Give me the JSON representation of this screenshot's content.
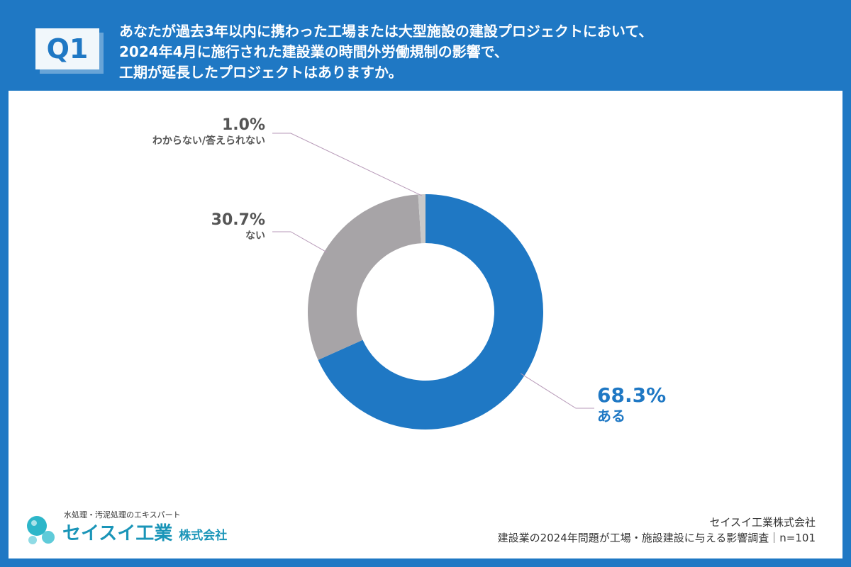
{
  "header": {
    "badge": "Q1",
    "question_lines": [
      "あなたが過去3年以内に携わった工場または大型施設の建設プロジェクトにおいて、",
      "2024年4月に施行された建設業の時間外労働規制の影響で、",
      "工期が延長したプロジェクトはありますか。"
    ]
  },
  "chart_data": {
    "type": "pie",
    "style": "donut",
    "title": "",
    "series": [
      {
        "name": "ある",
        "value": 68.3,
        "label": "68.3%",
        "color": "#1f78c4"
      },
      {
        "name": "ない",
        "value": 30.7,
        "label": "30.7%",
        "color": "#a7a4a7"
      },
      {
        "name": "わからない/答えられない",
        "value": 1.0,
        "label": "1.0%",
        "color": "#c9c9c9"
      }
    ]
  },
  "logo": {
    "tagline": "水処理・汚泥処理のエキスパート",
    "name": "セイスイ工業",
    "suffix": "株式会社"
  },
  "footer": {
    "company": "セイスイ工業株式会社",
    "survey": "建設業の2024年問題が工場・施設建設に与える影響調査｜n=101"
  },
  "colors": {
    "brand_blue": "#1f78c4",
    "leader_line": "#b79ab8"
  }
}
